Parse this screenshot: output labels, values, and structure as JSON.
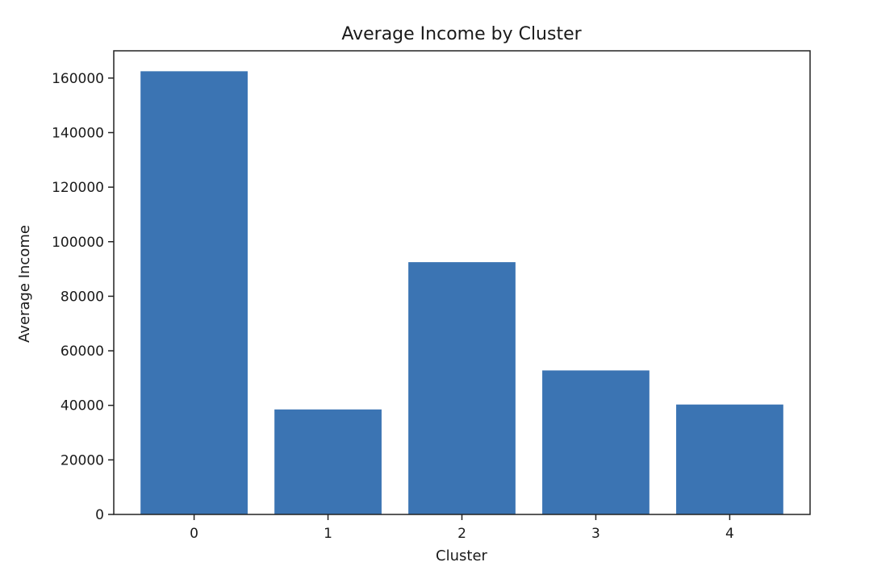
{
  "chart_data": {
    "type": "bar",
    "title": "Average Income by Cluster",
    "xlabel": "Cluster",
    "ylabel": "Average Income",
    "categories": [
      "0",
      "1",
      "2",
      "3",
      "4"
    ],
    "values": [
      162500,
      38500,
      92500,
      52800,
      40300
    ],
    "ylim": [
      0,
      170000
    ],
    "yticks": [
      0,
      20000,
      40000,
      60000,
      80000,
      100000,
      120000,
      140000,
      160000
    ],
    "ytick_labels": [
      "0",
      "20000",
      "40000",
      "60000",
      "80000",
      "100000",
      "120000",
      "140000",
      "160000"
    ],
    "grid": false,
    "legend": "none",
    "bar_color": "#3b74b3"
  }
}
